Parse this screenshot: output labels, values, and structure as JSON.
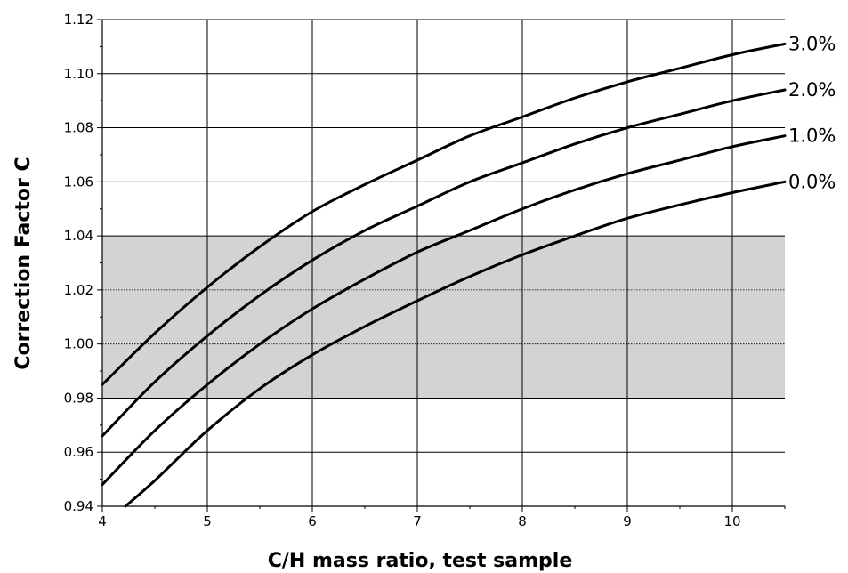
{
  "chart_data": {
    "type": "line",
    "title": "",
    "xlabel": "C/H mass ratio, test sample",
    "ylabel": "Correction Factor C",
    "xlim": [
      4,
      10.5
    ],
    "ylim": [
      0.94,
      1.12
    ],
    "xticks": [
      4,
      5,
      6,
      7,
      8,
      9,
      10
    ],
    "xtick_labels": [
      "4",
      "5",
      "6",
      "7",
      "8",
      "9",
      "10"
    ],
    "yticks": [
      0.94,
      0.96,
      0.98,
      1.0,
      1.02,
      1.04,
      1.06,
      1.08,
      1.1,
      1.12
    ],
    "ytick_labels": [
      "0.94",
      "0.96",
      "0.98",
      "1.00",
      "1.02",
      "1.04",
      "1.06",
      "1.08",
      "1.10",
      "1.12"
    ],
    "grid": true,
    "shaded_band": {
      "y_from": 0.98,
      "y_to": 1.04,
      "color": "#d3d3d3"
    },
    "colors": {
      "line": "#000000",
      "grid": "#000000",
      "band": "#d3d3d3"
    },
    "series": [
      {
        "name": "0.0%",
        "x": [
          4.22,
          4.5,
          5,
          5.5,
          6,
          6.5,
          7,
          7.5,
          8,
          8.5,
          9,
          9.5,
          10,
          10.5
        ],
        "values": [
          0.94,
          0.9495,
          0.968,
          0.9835,
          0.996,
          1.0065,
          1.016,
          1.025,
          1.033,
          1.04,
          1.0465,
          1.0515,
          1.056,
          1.06
        ]
      },
      {
        "name": "1.0%",
        "x": [
          4,
          4.5,
          5,
          5.5,
          6,
          6.5,
          7,
          7.5,
          8,
          8.5,
          9,
          9.5,
          10,
          10.5
        ],
        "values": [
          0.948,
          0.968,
          0.985,
          1.0,
          1.013,
          1.024,
          1.034,
          1.042,
          1.05,
          1.057,
          1.063,
          1.068,
          1.073,
          1.077
        ]
      },
      {
        "name": "2.0%",
        "x": [
          4,
          4.5,
          5,
          5.5,
          6,
          6.5,
          7,
          7.5,
          8,
          8.5,
          9,
          9.5,
          10,
          10.5
        ],
        "values": [
          0.966,
          0.986,
          1.003,
          1.018,
          1.031,
          1.042,
          1.051,
          1.06,
          1.067,
          1.074,
          1.08,
          1.085,
          1.09,
          1.094
        ]
      },
      {
        "name": "3.0%",
        "x": [
          4,
          4.5,
          5,
          5.5,
          6,
          6.5,
          7,
          7.5,
          8,
          8.5,
          9,
          9.5,
          10,
          10.5
        ],
        "values": [
          0.985,
          1.004,
          1.021,
          1.036,
          1.049,
          1.059,
          1.068,
          1.077,
          1.084,
          1.091,
          1.097,
          1.102,
          1.107,
          1.111
        ]
      }
    ]
  }
}
